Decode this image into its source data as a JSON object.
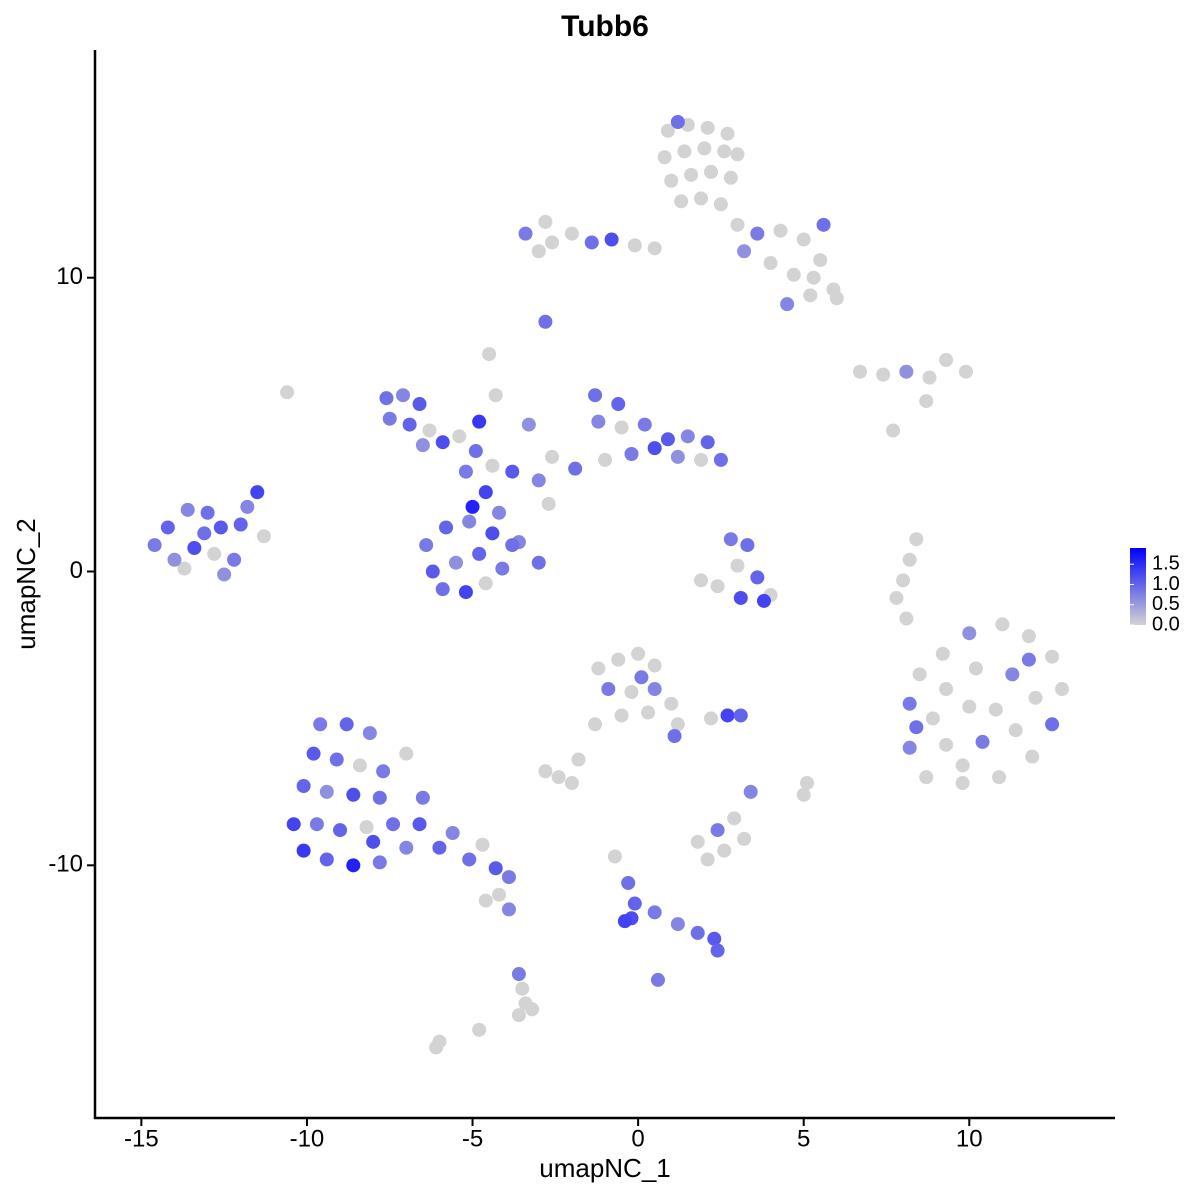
{
  "chart_data": {
    "type": "scatter",
    "title": "Tubb6",
    "x_label": "umapNC_1",
    "y_label": "umapNC_2",
    "xlim": [
      -16.4,
      14.4
    ],
    "ylim": [
      -18.6,
      17.75
    ],
    "xticks": [
      -15,
      -10,
      -5,
      0,
      5,
      10
    ],
    "yticks": [
      -10,
      0,
      10
    ],
    "grid": false,
    "low_color": "#d3d3d3",
    "high_color": "#0000ff",
    "color_range": [
      0,
      1.9
    ],
    "color_ticks": [
      {
        "value": 0,
        "label": "0.0"
      },
      0.5,
      {
        "value": 1,
        "label": "1.0"
      },
      1.5
    ],
    "legend_position": "right",
    "x": [
      0.9,
      1.5,
      2.1,
      2.7,
      3.0,
      0.8,
      1.4,
      2.0,
      2.6,
      1.0,
      1.6,
      2.2,
      2.8,
      1.3,
      1.9,
      2.5,
      1.2,
      3.0,
      3.6,
      4.3,
      5.0,
      5.6,
      4.0,
      4.7,
      5.3,
      5.9,
      6.0,
      4.5,
      5.2,
      3.2,
      5.5,
      -3.4,
      -2.8,
      -2.6,
      -2.0,
      -1.4,
      -0.8,
      -0.1,
      0.5,
      -3.0,
      -2.8,
      -7.6,
      -7.1,
      -6.6,
      -7.5,
      -6.9,
      -6.3,
      -5.9,
      -6.5,
      -5.4,
      -4.9,
      -4.4,
      -3.8,
      -3.0,
      -2.6,
      -4.6,
      -5.2,
      -4.8,
      -4.3,
      -4.5,
      -3.6,
      -3.0,
      -2.7,
      -3.3,
      -6.4,
      -5.8,
      -5.1,
      -4.4,
      -3.8,
      -6.2,
      -5.5,
      -4.8,
      -4.1,
      -5.9,
      -5.2,
      -4.6,
      -5.0,
      -4.2,
      -1.3,
      -0.6,
      -1.2,
      -0.5,
      0.2,
      0.9,
      1.5,
      2.1,
      2.5,
      1.9,
      1.2,
      0.5,
      -0.2,
      -1.0,
      -1.9,
      -14.6,
      -14.2,
      -13.6,
      -13.0,
      -12.6,
      -14.0,
      -13.4,
      -12.8,
      -12.2,
      -13.1,
      -11.8,
      -11.3,
      -12.0,
      -12.5,
      -11.5,
      -13.7,
      2.8,
      3.3,
      3.0,
      3.6,
      2.4,
      3.1,
      4.0,
      1.9,
      3.8,
      8.2,
      8.5,
      9.2,
      10.0,
      11.0,
      11.8,
      12.5,
      12.8,
      12.5,
      11.9,
      10.9,
      9.8,
      8.7,
      8.2,
      9.3,
      10.2,
      11.3,
      12.0,
      11.4,
      10.4,
      9.3,
      8.9,
      10.0,
      10.8,
      9.8,
      11.8,
      8.4,
      -9.6,
      -8.8,
      -8.1,
      -9.8,
      -9.1,
      -8.4,
      -7.7,
      -10.1,
      -9.4,
      -8.6,
      -7.8,
      -10.4,
      -9.7,
      -9.0,
      -8.2,
      -7.4,
      -6.6,
      -10.1,
      -9.4,
      -8.6,
      -7.8,
      -7.0,
      -6.0,
      -5.1,
      -4.3,
      -3.9,
      -7.0,
      -6.5,
      -5.6,
      -4.7,
      -8.0,
      -3.9,
      -4.2,
      -1.2,
      -0.6,
      0.0,
      0.5,
      -0.9,
      -0.2,
      0.5,
      1.0,
      1.2,
      0.3,
      -0.5,
      -1.3,
      1.1,
      -1.8,
      -2.4,
      -2.8,
      -2.0,
      0.1,
      2.7,
      3.1,
      2.2,
      1.8,
      2.4,
      2.9,
      3.2,
      2.6,
      2.1,
      3.4,
      5.1,
      5.0,
      6.7,
      7.4,
      8.1,
      8.8,
      9.3,
      9.9,
      8.7,
      7.7,
      -10.6,
      8.4,
      8.2,
      8.0,
      7.8,
      8.1,
      -0.7,
      -0.3,
      -0.1,
      -0.2,
      0.5,
      1.2,
      1.8,
      2.3,
      2.4,
      0.6,
      -0.4,
      -3.6,
      -3.5,
      -3.4,
      -3.6,
      -3.2,
      -4.8,
      -6.0,
      -6.1,
      -4.6
    ],
    "y": [
      15,
      15.2,
      15.1,
      14.9,
      14.2,
      14.1,
      14.3,
      14.4,
      14.3,
      13.3,
      13.5,
      13.6,
      13.4,
      12.6,
      12.7,
      12.5,
      15.3,
      11.8,
      11.5,
      11.6,
      11.3,
      11.8,
      10.5,
      10.1,
      10.0,
      9.6,
      9.3,
      9.1,
      9.4,
      10.9,
      10.6,
      11.5,
      11.9,
      11.2,
      11.5,
      11.2,
      11.3,
      11.1,
      11.0,
      10.9,
      8.5,
      5.9,
      6.0,
      5.7,
      5.2,
      5.0,
      4.8,
      4.4,
      4.3,
      4.6,
      4.1,
      3.6,
      3.4,
      3.1,
      3.9,
      2.7,
      3.4,
      5.1,
      6.0,
      7.4,
      1.0,
      0.3,
      2.3,
      5.0,
      0.9,
      1.5,
      1.7,
      1.3,
      0.9,
      0.0,
      0.3,
      0.6,
      0.1,
      -0.6,
      -0.7,
      -0.4,
      2.2,
      2.0,
      6.0,
      5.7,
      5.1,
      4.9,
      5.0,
      4.5,
      4.6,
      4.4,
      3.8,
      3.8,
      3.9,
      4.2,
      4.0,
      3.8,
      3.5,
      0.9,
      1.5,
      2.1,
      2.0,
      1.5,
      0.4,
      0.8,
      0.6,
      0.4,
      1.3,
      2.2,
      1.2,
      1.6,
      -0.1,
      2.7,
      0.1,
      1.1,
      0.9,
      0.2,
      -0.2,
      -0.5,
      -0.9,
      -0.8,
      -0.3,
      -1.0,
      -4.5,
      -3.5,
      -2.8,
      -2.1,
      -1.8,
      -2.2,
      -2.9,
      -4.0,
      -5.2,
      -6.3,
      -7.0,
      -7.2,
      -7.0,
      -6.0,
      -4.0,
      -3.3,
      -3.5,
      -4.3,
      -5.4,
      -5.8,
      -5.9,
      -5.0,
      -4.6,
      -4.7,
      -6.6,
      -3.0,
      -5.3,
      -5.2,
      -5.2,
      -5.5,
      -6.2,
      -6.4,
      -6.6,
      -6.8,
      -7.3,
      -7.5,
      -7.6,
      -7.7,
      -8.6,
      -8.6,
      -8.8,
      -8.7,
      -8.6,
      -8.6,
      -9.5,
      -9.8,
      -10.0,
      -9.9,
      -9.4,
      -9.4,
      -9.8,
      -10.1,
      -10.4,
      -6.2,
      -7.7,
      -8.9,
      -9.3,
      -9.2,
      -11.5,
      -11.0,
      -3.3,
      -3.0,
      -2.8,
      -3.2,
      -4.0,
      -4.1,
      -4.0,
      -4.5,
      -5.2,
      -4.8,
      -4.9,
      -5.2,
      -5.6,
      -6.4,
      -7.0,
      -6.8,
      -7.2,
      -3.6,
      -4.9,
      -4.9,
      -5.0,
      -9.2,
      -8.8,
      -8.4,
      -9.1,
      -9.5,
      -9.8,
      -7.5,
      -7.2,
      -7.6,
      6.8,
      6.7,
      6.8,
      6.6,
      7.2,
      6.8,
      5.8,
      4.8,
      6.1,
      1.1,
      0.4,
      -0.3,
      -0.9,
      -1.6,
      -9.7,
      -10.6,
      -11.3,
      -11.8,
      -11.6,
      -12.0,
      -12.3,
      -12.5,
      -12.9,
      -13.9,
      -11.9,
      -13.7,
      -14.2,
      -14.7,
      -15.1,
      -14.9,
      -15.6,
      -16.0,
      -16.2,
      -11.2
    ],
    "values": [
      0,
      0,
      0,
      0,
      0,
      0,
      0,
      0,
      0,
      0,
      0,
      0,
      0,
      0,
      0,
      0,
      0.9,
      0,
      0.8,
      0,
      0,
      0.9,
      0,
      0,
      0,
      0,
      0,
      0.7,
      0,
      0.6,
      0,
      0.8,
      0,
      0,
      0,
      0.9,
      1.2,
      0,
      0,
      0,
      0.9,
      0.9,
      0.7,
      1.1,
      0.8,
      1.0,
      0,
      1.2,
      0.6,
      0,
      0.9,
      0,
      1.1,
      0.7,
      0,
      1.3,
      0.8,
      1.4,
      0,
      0,
      0.7,
      0.9,
      0,
      0.6,
      0.8,
      1.0,
      0.7,
      1.2,
      0.9,
      1.1,
      0.6,
      1.0,
      0.8,
      0.9,
      1.3,
      0,
      1.6,
      0.7,
      0.9,
      1.0,
      0.7,
      0,
      0.8,
      1.1,
      0.7,
      1.0,
      0.9,
      0,
      0.6,
      1.2,
      0.8,
      0,
      0.9,
      0.8,
      1.0,
      0.7,
      0.9,
      1.1,
      0.6,
      1.2,
      0,
      0.8,
      0.9,
      0.7,
      0,
      1.0,
      0.6,
      1.3,
      0,
      0.8,
      0.9,
      0,
      1.0,
      0,
      1.2,
      0,
      0,
      1.3,
      0.8,
      0,
      0,
      0.6,
      0,
      0,
      0,
      0,
      0.9,
      0,
      0,
      0,
      0,
      0.7,
      0,
      0,
      0.7,
      0,
      0,
      0.8,
      0,
      0,
      0,
      0,
      0,
      0.8,
      0.9,
      0.8,
      1.0,
      0.7,
      1.1,
      0.9,
      0,
      0.8,
      1.0,
      0.6,
      1.2,
      0.9,
      1.3,
      0.8,
      1.0,
      0,
      0.9,
      1.1,
      1.4,
      1.0,
      1.6,
      0.8,
      0.7,
      1.0,
      0.9,
      1.1,
      0.8,
      0,
      0.8,
      0.7,
      0,
      1.2,
      0.7,
      0,
      0,
      0,
      0,
      0,
      0.8,
      0,
      0.7,
      0,
      0,
      0,
      0,
      0,
      0.9,
      0,
      0,
      0,
      0,
      0.8,
      1.3,
      1.0,
      0,
      0,
      0.8,
      0,
      0,
      0,
      0,
      0.7,
      0,
      0,
      0,
      0,
      0.6,
      0,
      0,
      0,
      0,
      0,
      0,
      0,
      0,
      0,
      0,
      0,
      0,
      0.9,
      1.0,
      1.2,
      0.8,
      0.7,
      0.9,
      1.1,
      1.0,
      0.8,
      1.3,
      0.8,
      0,
      0,
      0,
      0,
      0,
      0,
      0,
      0
    ]
  }
}
